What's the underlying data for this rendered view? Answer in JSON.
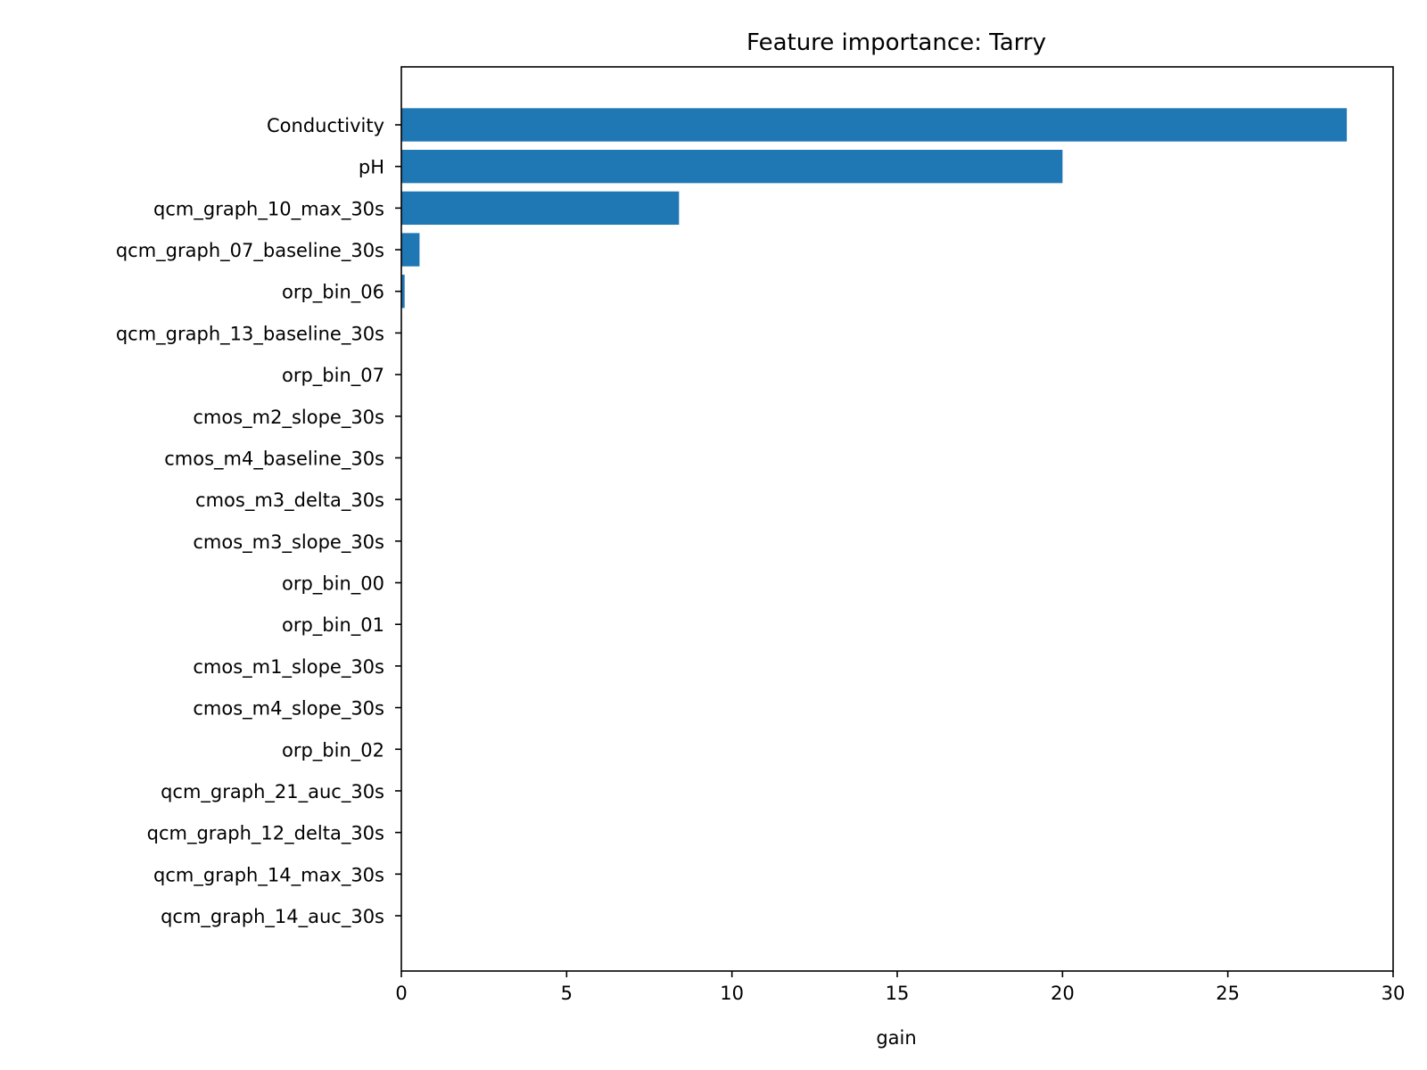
{
  "chart_data": {
    "type": "bar",
    "orientation": "horizontal",
    "title": "Feature importance: Tarry",
    "xlabel": "gain",
    "ylabel": "",
    "xlim": [
      0,
      30
    ],
    "xticks": [
      0,
      5,
      10,
      15,
      20,
      25,
      30
    ],
    "grid": false,
    "color": "#1f77b4",
    "categories": [
      "Conductivity",
      "pH",
      "qcm_graph_10_max_30s",
      "qcm_graph_07_baseline_30s",
      "orp_bin_06",
      "qcm_graph_13_baseline_30s",
      "orp_bin_07",
      "cmos_m2_slope_30s",
      "cmos_m4_baseline_30s",
      "cmos_m3_delta_30s",
      "cmos_m3_slope_30s",
      "orp_bin_00",
      "orp_bin_01",
      "cmos_m1_slope_30s",
      "cmos_m4_slope_30s",
      "orp_bin_02",
      "qcm_graph_21_auc_30s",
      "qcm_graph_12_delta_30s",
      "qcm_graph_14_max_30s",
      "qcm_graph_14_auc_30s"
    ],
    "values": [
      28.6,
      20.0,
      8.4,
      0.55,
      0.1,
      0,
      0,
      0,
      0,
      0,
      0,
      0,
      0,
      0,
      0,
      0,
      0,
      0,
      0,
      0
    ]
  }
}
